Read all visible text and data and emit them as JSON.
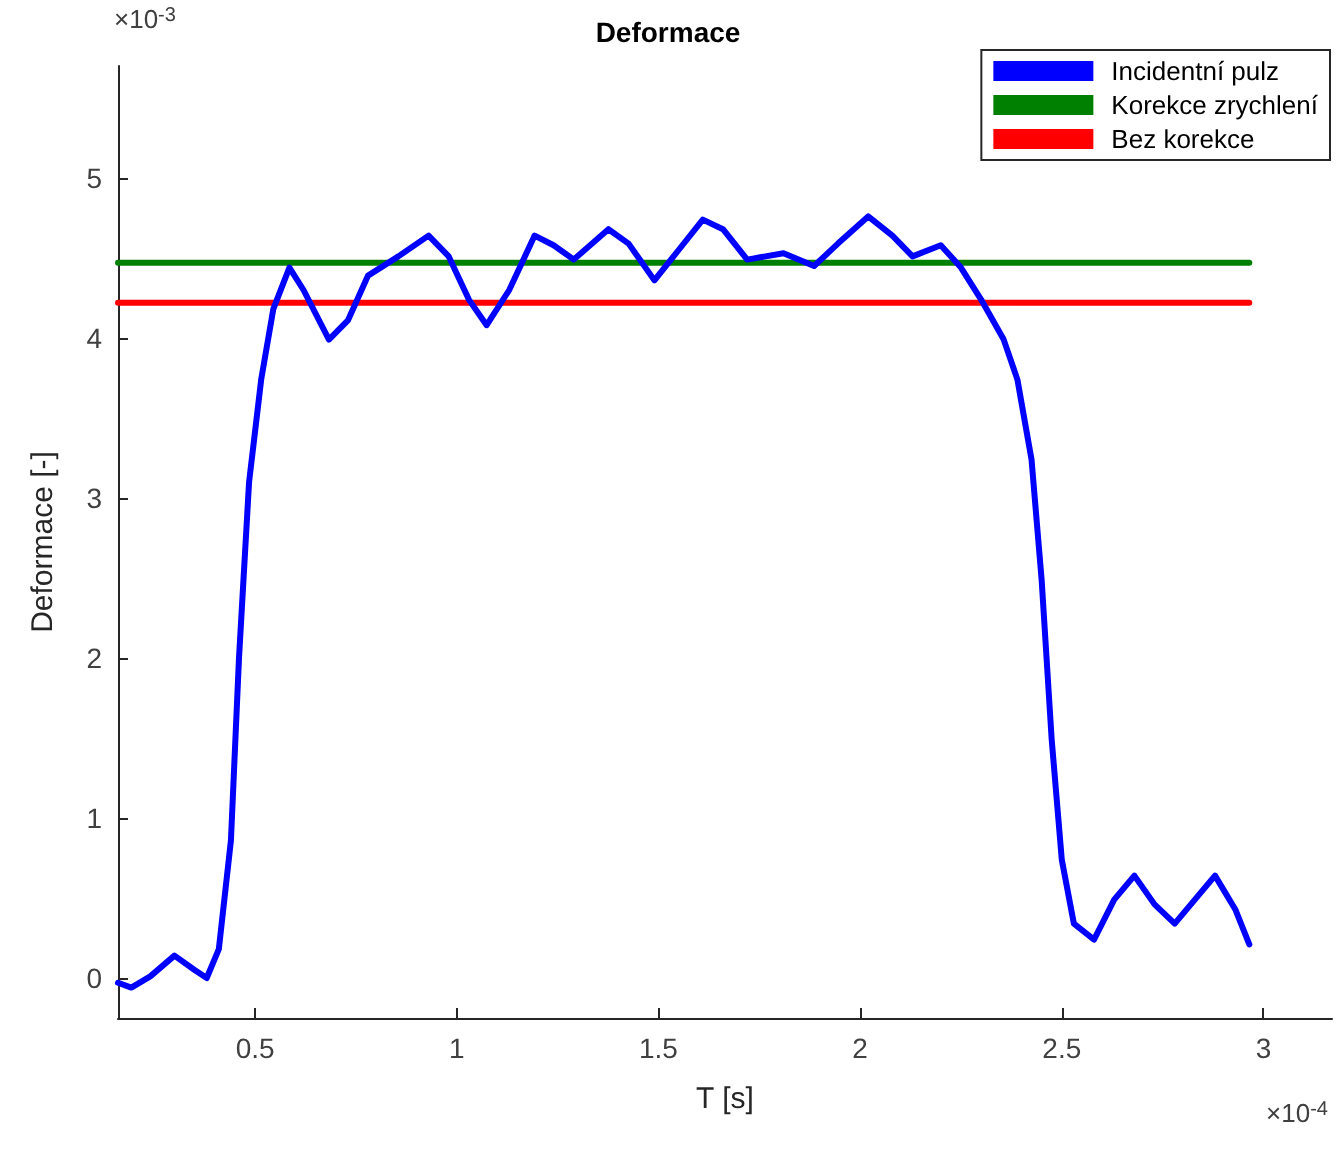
{
  "chart_data": {
    "type": "line",
    "title": "Deformace",
    "xlabel": "T [s]",
    "ylabel": "Deformace [-]",
    "annotations": [
      "×10$^{-3}$",
      "×10$^{-4}$"
    ],
    "xlim": [
      0.16,
      3.17
    ],
    "ylim": [
      -0.25,
      5.7
    ],
    "xticks": [
      0.5,
      1,
      1.5,
      2,
      2.5,
      3
    ],
    "yticks": [
      0,
      1,
      2,
      3,
      4,
      5
    ],
    "grid": false,
    "legend": "top right",
    "series": [
      {
        "name": "Incidentní pulz",
        "color": "#0000ff",
        "x": [
          0.16,
          0.193,
          0.24,
          0.3,
          0.35,
          0.38,
          0.41,
          0.44,
          0.46,
          0.485,
          0.515,
          0.545,
          0.585,
          0.62,
          0.683,
          0.73,
          0.78,
          0.855,
          0.93,
          0.98,
          1.03,
          1.074,
          1.13,
          1.193,
          1.24,
          1.29,
          1.376,
          1.426,
          1.49,
          1.55,
          1.61,
          1.66,
          1.72,
          1.81,
          1.886,
          1.945,
          2.02,
          2.08,
          2.13,
          2.2,
          2.25,
          2.3,
          2.356,
          2.39,
          2.425,
          2.45,
          2.475,
          2.5,
          2.53,
          2.58,
          2.63,
          2.68,
          2.73,
          2.78,
          2.83,
          2.88,
          2.93,
          2.965
        ],
        "values": [
          -0.03,
          -0.06,
          0.01,
          0.14,
          0.05,
          0.0,
          0.18,
          0.86,
          2.0,
          3.1,
          3.74,
          4.18,
          4.44,
          4.3,
          3.99,
          4.11,
          4.39,
          4.51,
          4.64,
          4.51,
          4.24,
          4.08,
          4.3,
          4.64,
          4.58,
          4.49,
          4.68,
          4.59,
          4.36,
          4.55,
          4.74,
          4.68,
          4.49,
          4.53,
          4.45,
          4.59,
          4.76,
          4.64,
          4.51,
          4.58,
          4.44,
          4.24,
          3.99,
          3.74,
          3.24,
          2.49,
          1.49,
          0.74,
          0.34,
          0.24,
          0.49,
          0.64,
          0.46,
          0.34,
          0.49,
          0.64,
          0.43,
          0.21
        ]
      },
      {
        "name": "Korekce zrychlení",
        "color": "#008000",
        "x": [
          0.16,
          2.965
        ],
        "values": [
          4.47,
          4.47
        ]
      },
      {
        "name": "Bez korekce",
        "color": "#ff0000",
        "x": [
          0.16,
          2.965
        ],
        "values": [
          4.22,
          4.22
        ]
      }
    ]
  }
}
